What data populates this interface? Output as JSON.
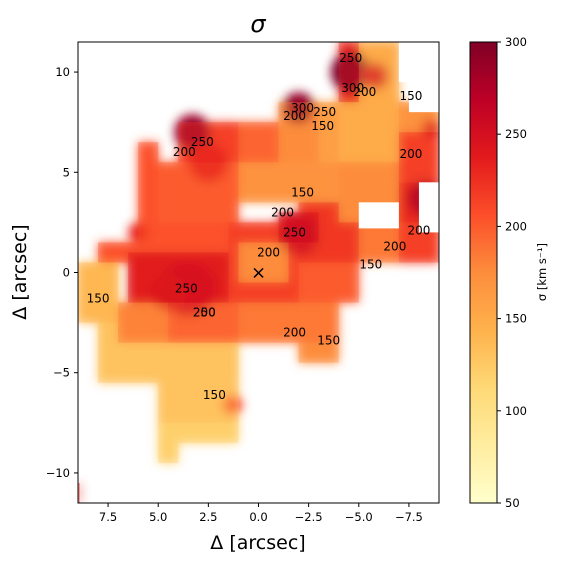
{
  "chart_data": {
    "type": "heatmap",
    "title": "σ",
    "xlabel": "Δ  [arcsec]",
    "ylabel": "Δ  [arcsec]",
    "xlim": [
      9,
      -9
    ],
    "ylim": [
      -11.5,
      11.5
    ],
    "xticks": [
      {
        "value": 7.5,
        "label": "7.5"
      },
      {
        "value": 5.0,
        "label": "5.0"
      },
      {
        "value": 2.5,
        "label": "2.5"
      },
      {
        "value": 0.0,
        "label": "0.0"
      },
      {
        "value": -2.5,
        "label": "−2.5"
      },
      {
        "value": -5.0,
        "label": "−5.0"
      },
      {
        "value": -7.5,
        "label": "−7.5"
      }
    ],
    "yticks": [
      {
        "value": 10,
        "label": "10"
      },
      {
        "value": 5,
        "label": "5"
      },
      {
        "value": 0,
        "label": "0"
      },
      {
        "value": -5,
        "label": "−5"
      },
      {
        "value": -10,
        "label": "−10"
      }
    ],
    "colorbar": {
      "label": "σ [km s⁻¹]",
      "range": [
        50,
        300
      ],
      "colormap": [
        "#ffffcc",
        "#ffeda0",
        "#fed976",
        "#feb24c",
        "#fd8d3c",
        "#fc4e2a",
        "#e31a1c",
        "#bd0026",
        "#800026"
      ],
      "ticks": [
        {
          "value": 50,
          "label": "50"
        },
        {
          "value": 100,
          "label": "100"
        },
        {
          "value": 150,
          "label": "150"
        },
        {
          "value": 200,
          "label": "200"
        },
        {
          "value": 250,
          "label": "250"
        },
        {
          "value": 300,
          "label": "300"
        }
      ]
    },
    "contour_levels": [
      150,
      200,
      250,
      300
    ],
    "contour_labels": [
      {
        "x": 8.0,
        "y": -1.3,
        "text": "150"
      },
      {
        "x": 3.7,
        "y": 6.0,
        "text": "200"
      },
      {
        "x": 2.8,
        "y": 6.5,
        "text": "250"
      },
      {
        "x": 2.7,
        "y": -2.0,
        "text": "250"
      },
      {
        "x": 2.7,
        "y": -2.0,
        "text": "250"
      },
      {
        "x": 2.7,
        "y": -2.0,
        "text": "250"
      },
      {
        "x": 2.7,
        "y": -2.0,
        "text": "250"
      },
      {
        "x": 2.7,
        "y": -2.0,
        "text": "250"
      },
      {
        "x": 3.6,
        "y": -0.8,
        "text": "250"
      },
      {
        "x": 2.7,
        "y": -2.0,
        "text": "200"
      },
      {
        "x": -0.5,
        "y": 1.0,
        "text": "200"
      },
      {
        "x": -1.2,
        "y": 3.0,
        "text": "200"
      },
      {
        "x": -1.8,
        "y": 2.0,
        "text": "250"
      },
      {
        "x": -2.2,
        "y": 4.0,
        "text": "150"
      },
      {
        "x": -3.2,
        "y": 7.3,
        "text": "150"
      },
      {
        "x": -1.8,
        "y": 7.8,
        "text": "200"
      },
      {
        "x": -2.2,
        "y": 8.2,
        "text": "300"
      },
      {
        "x": -3.3,
        "y": 8.0,
        "text": "250"
      },
      {
        "x": -4.6,
        "y": 10.7,
        "text": "250"
      },
      {
        "x": -4.7,
        "y": 9.2,
        "text": "300"
      },
      {
        "x": -5.3,
        "y": 9.0,
        "text": "200"
      },
      {
        "x": -7.6,
        "y": 8.8,
        "text": "150"
      },
      {
        "x": -7.6,
        "y": 5.9,
        "text": "200"
      },
      {
        "x": -6.8,
        "y": 1.3,
        "text": "200"
      },
      {
        "x": -8.0,
        "y": 2.1,
        "text": "200"
      },
      {
        "x": -5.6,
        "y": 0.4,
        "text": "150"
      },
      {
        "x": -1.8,
        "y": -3.0,
        "text": "200"
      },
      {
        "x": -3.5,
        "y": -3.4,
        "text": "150"
      },
      {
        "x": 2.2,
        "y": -6.1,
        "text": "150"
      }
    ],
    "marker": {
      "x": 0.0,
      "y": 0.0,
      "symbol": "×"
    },
    "regions": [
      {
        "x0": 9.0,
        "x1": 7.0,
        "y0": -2.5,
        "y1": 0.5,
        "value": 140
      },
      {
        "x0": 8.0,
        "x1": 7.0,
        "y0": -5.5,
        "y1": -2.5,
        "value": 130
      },
      {
        "x0": 7.0,
        "x1": 1.0,
        "y0": -5.5,
        "y1": -3.5,
        "value": 130
      },
      {
        "x0": 5.0,
        "x1": 1.0,
        "y0": -7.5,
        "y1": -5.5,
        "value": 130
      },
      {
        "x0": 5.0,
        "x1": 4.0,
        "y0": -9.5,
        "y1": -7.5,
        "value": 120
      },
      {
        "x0": 4.0,
        "x1": 1.0,
        "y0": -8.5,
        "y1": -7.5,
        "value": 120
      },
      {
        "x0": 7.0,
        "x1": 4.5,
        "y0": -3.5,
        "y1": -1.5,
        "value": 180
      },
      {
        "x0": 4.5,
        "x1": 1.0,
        "y0": -3.5,
        "y1": -1.5,
        "value": 195
      },
      {
        "x0": 1.0,
        "x1": -4.0,
        "y0": -3.5,
        "y1": -1.5,
        "value": 185
      },
      {
        "x0": -2.0,
        "x1": -4.0,
        "y0": -4.5,
        "y1": -3.5,
        "value": 175
      },
      {
        "x0": -2.0,
        "x1": -5.0,
        "y0": -1.5,
        "y1": 0.5,
        "value": 200
      },
      {
        "x0": 8.0,
        "x1": 6.0,
        "y0": 0.5,
        "y1": 1.5,
        "value": 205
      },
      {
        "x0": 6.5,
        "x1": 1.5,
        "y0": -1.5,
        "y1": 1.0,
        "value": 238
      },
      {
        "x0": 6.0,
        "x1": 1.5,
        "y0": 1.0,
        "y1": 2.5,
        "value": 205
      },
      {
        "x0": 1.5,
        "x1": -2.0,
        "y0": -1.5,
        "y1": 2.5,
        "value": 215
      },
      {
        "x0": 1.0,
        "x1": -1.5,
        "y0": -0.5,
        "y1": 1.5,
        "value": 175
      },
      {
        "x0": -2.0,
        "x1": -5.0,
        "y0": 0.5,
        "y1": 3.5,
        "value": 220
      },
      {
        "x0": -1.0,
        "x1": -3.0,
        "y0": 1.5,
        "y1": 3.0,
        "value": 245
      },
      {
        "x0": -5.0,
        "x1": -7.0,
        "y0": 0.5,
        "y1": 2.5,
        "value": 185
      },
      {
        "x0": -7.0,
        "x1": -9.0,
        "y0": 0.5,
        "y1": 2.5,
        "value": 215
      },
      {
        "x0": 6.0,
        "x1": 5.0,
        "y0": 2.5,
        "y1": 6.5,
        "value": 205
      },
      {
        "x0": 5.0,
        "x1": 1.0,
        "y0": 2.5,
        "y1": 5.5,
        "value": 200
      },
      {
        "x0": 1.0,
        "x1": -4.0,
        "y0": 3.5,
        "y1": 5.5,
        "value": 170
      },
      {
        "x0": -4.0,
        "x1": -7.0,
        "y0": 2.5,
        "y1": 5.5,
        "value": 175
      },
      {
        "x0": -7.0,
        "x1": -8.0,
        "y0": 2.5,
        "y1": 4.5,
        "value": 230
      },
      {
        "x0": -8.0,
        "x1": -9.0,
        "y0": 2.5,
        "y1": 4.5,
        "value": 245
      },
      {
        "x0": -7.0,
        "x1": -9.0,
        "y0": 4.5,
        "y1": 7.5,
        "value": 215
      },
      {
        "x0": 4.0,
        "x1": 1.0,
        "y0": 5.5,
        "y1": 7.5,
        "value": 215
      },
      {
        "x0": 1.0,
        "x1": -1.0,
        "y0": 5.5,
        "y1": 7.5,
        "value": 195
      },
      {
        "x0": -1.0,
        "x1": -3.0,
        "y0": 5.5,
        "y1": 8.5,
        "value": 175
      },
      {
        "x0": -3.0,
        "x1": -4.0,
        "y0": 5.5,
        "y1": 8.5,
        "value": 160
      },
      {
        "x0": -4.0,
        "x1": -7.0,
        "y0": 5.5,
        "y1": 9.5,
        "value": 150
      },
      {
        "x0": -4.0,
        "x1": -5.0,
        "y0": 8.5,
        "y1": 11.5,
        "value": 230
      },
      {
        "x0": -5.0,
        "x1": -7.0,
        "y0": 9.5,
        "y1": 11.5,
        "value": 150
      },
      {
        "x0": -7.0,
        "x1": -9.0,
        "y0": 7.0,
        "y1": 8.5,
        "value": 170
      },
      {
        "x0": 9.0,
        "x1": 8.9,
        "y0": -11.5,
        "y1": -10.5,
        "value": 240
      }
    ],
    "hotspots": [
      {
        "x": 3.3,
        "y": 7.0,
        "r": 0.9,
        "value": 285
      },
      {
        "x": 2.5,
        "y": 5.5,
        "r": 1.0,
        "value": 235
      },
      {
        "x": 3.5,
        "y": -0.8,
        "r": 1.4,
        "value": 250
      },
      {
        "x": 4.5,
        "y": -1.0,
        "r": 0.9,
        "value": 245
      },
      {
        "x": -2.0,
        "y": 1.8,
        "r": 1.0,
        "value": 255
      },
      {
        "x": -2.0,
        "y": 8.2,
        "r": 0.8,
        "value": 290
      },
      {
        "x": -4.6,
        "y": 10.0,
        "r": 1.0,
        "value": 300
      },
      {
        "x": -5.8,
        "y": 9.8,
        "r": 0.7,
        "value": 250
      },
      {
        "x": -8.3,
        "y": 3.7,
        "r": 0.9,
        "value": 280
      },
      {
        "x": -8.6,
        "y": 7.2,
        "r": 0.5,
        "value": 245
      },
      {
        "x": 1.3,
        "y": -6.6,
        "r": 0.5,
        "value": 210
      },
      {
        "x": 6.0,
        "y": 2.0,
        "r": 0.5,
        "value": 230
      }
    ],
    "blank_cutouts": [
      {
        "x0": -5.0,
        "x1": -7.0,
        "y0": 2.2,
        "y1": 3.5
      },
      {
        "x0": -8.0,
        "x1": -9.0,
        "y0": 2.0,
        "y1": 4.5
      },
      {
        "x0": -7.5,
        "x1": -9.0,
        "y0": 8.0,
        "y1": 11.5
      },
      {
        "x0": -7.0,
        "x1": -9.0,
        "y0": 9.5,
        "y1": 11.5
      }
    ]
  }
}
